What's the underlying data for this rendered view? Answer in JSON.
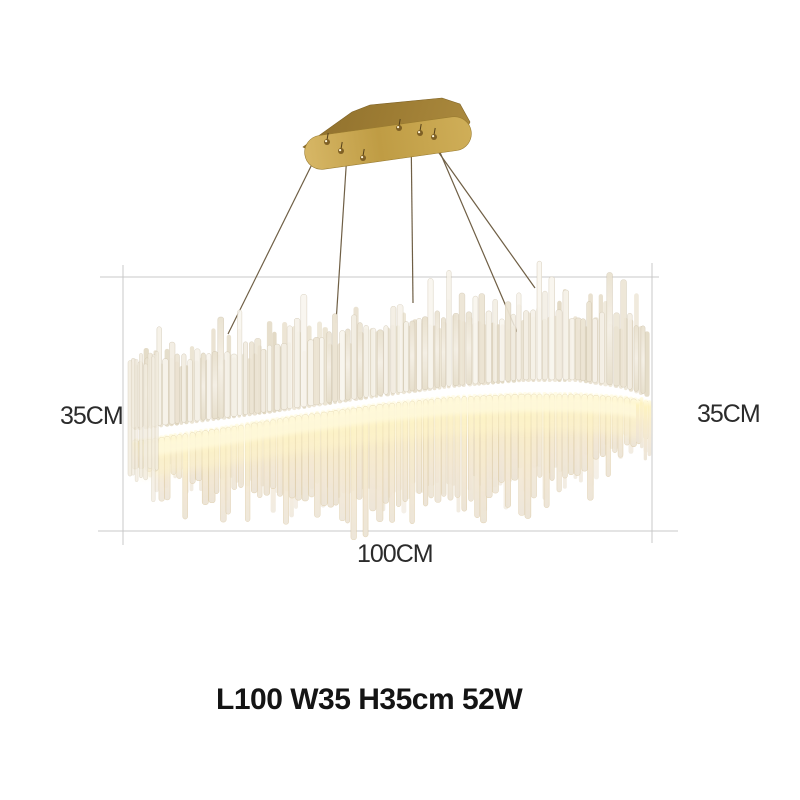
{
  "annotations": {
    "height_left": "35CM",
    "height_right": "35CM",
    "width_bottom": "100CM",
    "spec_line": "L100 W35 H35cm 52W"
  },
  "colors": {
    "background": "#ffffff",
    "gold_band_light": "#e6c569",
    "gold_band_mid": "#c19a38",
    "gold_band_dark": "#7c5d18",
    "canopy_face_gold": "#c8a64f",
    "canopy_top_gold": "#9d7c33",
    "glow": "#fff6cc",
    "crystal_clear": "#f3eee3",
    "crystal_shade": "#e4dbc6",
    "wire": "#6f5f45",
    "dimension_line": "#c8c8c8",
    "label_text": "#2b2b2b",
    "spec_text": "#141414"
  }
}
